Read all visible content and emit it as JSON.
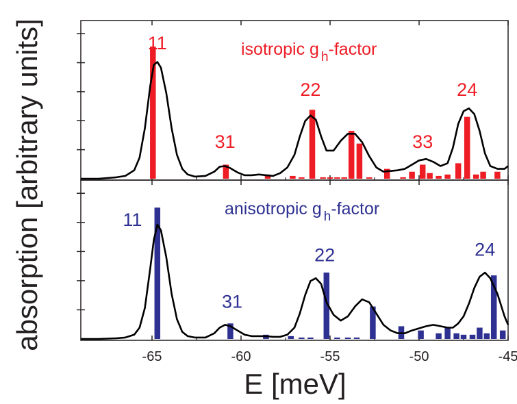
{
  "chart_data": {
    "type": "bar",
    "ylabel": "absorption [arbitrary units]",
    "xlabel": "E [meV]",
    "xlim": [
      -69,
      -45
    ],
    "xticks": [
      {
        "value": -65,
        "label": "-65"
      },
      {
        "value": -60,
        "label": "-60"
      },
      {
        "value": -55,
        "label": "-55"
      },
      {
        "value": -50,
        "label": "-50"
      },
      {
        "value": -45,
        "label": "-45"
      }
    ],
    "grid": false,
    "panels": [
      {
        "title": "isotropic g",
        "title_sub": "h",
        "title_suffix": "-factor",
        "color": "#ee1c25",
        "ylim": [
          0,
          1
        ],
        "peak_labels": [
          {
            "label": "11",
            "x": -64.7,
            "y": 0.92
          },
          {
            "label": "31",
            "x": -60.9,
            "y": 0.22
          },
          {
            "label": "22",
            "x": -56.1,
            "y": 0.59
          },
          {
            "label": "33",
            "x": -49.8,
            "y": 0.22
          },
          {
            "label": "24",
            "x": -47.3,
            "y": 0.59
          }
        ],
        "bars": [
          {
            "x": -64.95,
            "y": 0.94
          },
          {
            "x": -60.85,
            "y": 0.1
          },
          {
            "x": -58.5,
            "y": 0.03
          },
          {
            "x": -57.1,
            "y": 0.02
          },
          {
            "x": -56.6,
            "y": 0.01
          },
          {
            "x": -56.0,
            "y": 0.49
          },
          {
            "x": -55.4,
            "y": 0.01
          },
          {
            "x": -55.0,
            "y": 0.01
          },
          {
            "x": -54.6,
            "y": 0.01
          },
          {
            "x": -54.2,
            "y": 0.01
          },
          {
            "x": -53.8,
            "y": 0.34
          },
          {
            "x": -53.35,
            "y": 0.25
          },
          {
            "x": -52.8,
            "y": 0.01
          },
          {
            "x": -51.8,
            "y": 0.07
          },
          {
            "x": -50.9,
            "y": 0.01
          },
          {
            "x": -50.4,
            "y": 0.05
          },
          {
            "x": -49.8,
            "y": 0.1
          },
          {
            "x": -49.4,
            "y": 0.04
          },
          {
            "x": -48.9,
            "y": 0.02
          },
          {
            "x": -48.4,
            "y": 0.03
          },
          {
            "x": -47.8,
            "y": 0.11
          },
          {
            "x": -47.3,
            "y": 0.44
          },
          {
            "x": -46.8,
            "y": 0.03
          },
          {
            "x": -46.4,
            "y": 0.05
          },
          {
            "x": -45.6,
            "y": 0.05
          }
        ],
        "curve": {
          "x": [
            -69.0,
            -68.0,
            -67.0,
            -66.5,
            -66.0,
            -65.7,
            -65.4,
            -65.1,
            -64.9,
            -64.7,
            -64.5,
            -64.2,
            -63.9,
            -63.6,
            -63.3,
            -63.0,
            -62.6,
            -62.0,
            -61.5,
            -61.2,
            -60.9,
            -60.6,
            -60.2,
            -59.8,
            -59.4,
            -59.0,
            -58.6,
            -58.2,
            -57.8,
            -57.4,
            -57.0,
            -56.7,
            -56.4,
            -56.1,
            -55.8,
            -55.5,
            -55.2,
            -54.8,
            -54.4,
            -54.0,
            -53.6,
            -53.2,
            -52.8,
            -52.4,
            -52.0,
            -51.6,
            -51.2,
            -50.8,
            -50.4,
            -50.0,
            -49.6,
            -49.2,
            -48.8,
            -48.4,
            -48.1,
            -47.8,
            -47.5,
            -47.2,
            -46.9,
            -46.6,
            -46.3,
            -46.0,
            -45.6,
            -45.2,
            -45.0
          ],
          "y": [
            0.0,
            0.0,
            0.01,
            0.02,
            0.06,
            0.15,
            0.36,
            0.66,
            0.81,
            0.83,
            0.79,
            0.61,
            0.36,
            0.17,
            0.07,
            0.03,
            0.015,
            0.02,
            0.05,
            0.085,
            0.09,
            0.075,
            0.045,
            0.025,
            0.025,
            0.03,
            0.025,
            0.02,
            0.04,
            0.08,
            0.17,
            0.3,
            0.41,
            0.45,
            0.42,
            0.3,
            0.2,
            0.2,
            0.27,
            0.32,
            0.32,
            0.26,
            0.16,
            0.08,
            0.05,
            0.055,
            0.06,
            0.07,
            0.1,
            0.13,
            0.14,
            0.12,
            0.09,
            0.11,
            0.22,
            0.39,
            0.48,
            0.5,
            0.46,
            0.34,
            0.18,
            0.09,
            0.07,
            0.07,
            0.09
          ]
        }
      },
      {
        "title": "anisotropic g",
        "title_sub": "h",
        "title_suffix": "-factor",
        "color": "#2e3192",
        "ylim": [
          0,
          1
        ],
        "peak_labels": [
          {
            "label": "11",
            "x": -66.1,
            "y": 0.8
          },
          {
            "label": "31",
            "x": -60.5,
            "y": 0.22
          },
          {
            "label": "22",
            "x": -55.3,
            "y": 0.55
          },
          {
            "label": "24",
            "x": -46.3,
            "y": 0.59
          }
        ],
        "bars": [
          {
            "x": -64.7,
            "y": 0.93
          },
          {
            "x": -60.6,
            "y": 0.11
          },
          {
            "x": -58.6,
            "y": 0.03
          },
          {
            "x": -57.2,
            "y": 0.02
          },
          {
            "x": -56.6,
            "y": 0.01
          },
          {
            "x": -56.1,
            "y": 0.01
          },
          {
            "x": -55.2,
            "y": 0.47
          },
          {
            "x": -54.6,
            "y": 0.01
          },
          {
            "x": -54.0,
            "y": 0.01
          },
          {
            "x": -53.5,
            "y": 0.01
          },
          {
            "x": -52.6,
            "y": 0.23
          },
          {
            "x": -51.0,
            "y": 0.09
          },
          {
            "x": -49.9,
            "y": 0.06
          },
          {
            "x": -48.9,
            "y": 0.04
          },
          {
            "x": -48.4,
            "y": 0.08
          },
          {
            "x": -47.9,
            "y": 0.04
          },
          {
            "x": -47.5,
            "y": 0.03
          },
          {
            "x": -47.0,
            "y": 0.03
          },
          {
            "x": -46.6,
            "y": 0.08
          },
          {
            "x": -46.2,
            "y": 0.04
          },
          {
            "x": -45.8,
            "y": 0.45
          },
          {
            "x": -45.3,
            "y": 0.06
          }
        ],
        "curve": {
          "x": [
            -69.0,
            -68.0,
            -67.0,
            -66.5,
            -66.0,
            -65.7,
            -65.4,
            -65.1,
            -64.9,
            -64.7,
            -64.5,
            -64.2,
            -63.9,
            -63.6,
            -63.3,
            -63.0,
            -62.6,
            -62.0,
            -61.5,
            -61.2,
            -60.9,
            -60.6,
            -60.2,
            -59.8,
            -59.4,
            -59.0,
            -58.6,
            -58.2,
            -57.8,
            -57.4,
            -57.0,
            -56.7,
            -56.4,
            -56.1,
            -55.8,
            -55.5,
            -55.2,
            -54.8,
            -54.4,
            -54.0,
            -53.6,
            -53.2,
            -52.8,
            -52.4,
            -52.0,
            -51.6,
            -51.2,
            -50.8,
            -50.4,
            -50.0,
            -49.6,
            -49.2,
            -48.8,
            -48.4,
            -48.1,
            -47.8,
            -47.5,
            -47.2,
            -46.9,
            -46.6,
            -46.3,
            -46.0,
            -45.6,
            -45.2,
            -45.0
          ],
          "y": [
            0.0,
            0.0,
            0.005,
            0.01,
            0.03,
            0.08,
            0.22,
            0.5,
            0.7,
            0.81,
            0.77,
            0.58,
            0.32,
            0.14,
            0.05,
            0.02,
            0.01,
            0.01,
            0.04,
            0.08,
            0.1,
            0.09,
            0.06,
            0.03,
            0.02,
            0.02,
            0.02,
            0.015,
            0.015,
            0.03,
            0.08,
            0.18,
            0.31,
            0.41,
            0.43,
            0.39,
            0.26,
            0.17,
            0.13,
            0.16,
            0.23,
            0.28,
            0.26,
            0.18,
            0.1,
            0.06,
            0.04,
            0.04,
            0.06,
            0.075,
            0.09,
            0.1,
            0.09,
            0.08,
            0.08,
            0.11,
            0.16,
            0.25,
            0.36,
            0.44,
            0.47,
            0.43,
            0.32,
            0.16,
            0.1
          ]
        }
      }
    ]
  }
}
